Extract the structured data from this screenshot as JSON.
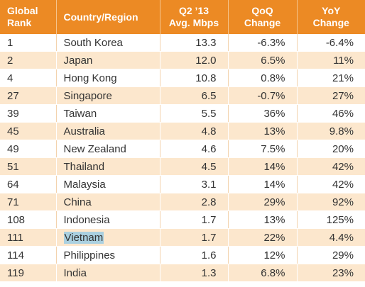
{
  "chart_data": {
    "type": "table",
    "columns": [
      {
        "line1": "Global",
        "line2": "Rank"
      },
      {
        "line1": "Country/Region",
        "line2": ""
      },
      {
        "line1": "Q2 ’13",
        "line2": "Avg. Mbps"
      },
      {
        "line1": "QoQ",
        "line2": "Change"
      },
      {
        "line1": "YoY",
        "line2": "Change"
      }
    ],
    "rows": [
      {
        "rank": "1",
        "country": "South Korea",
        "mbps": "13.3",
        "qoq": "-6.3%",
        "yoy": "-6.4%"
      },
      {
        "rank": "2",
        "country": "Japan",
        "mbps": "12.0",
        "qoq": "6.5%",
        "yoy": "11%"
      },
      {
        "rank": "4",
        "country": "Hong Kong",
        "mbps": "10.8",
        "qoq": "0.8%",
        "yoy": "21%"
      },
      {
        "rank": "27",
        "country": "Singapore",
        "mbps": "6.5",
        "qoq": "-0.7%",
        "yoy": "27%"
      },
      {
        "rank": "39",
        "country": "Taiwan",
        "mbps": "5.5",
        "qoq": "36%",
        "yoy": "46%"
      },
      {
        "rank": "45",
        "country": "Australia",
        "mbps": "4.8",
        "qoq": "13%",
        "yoy": "9.8%"
      },
      {
        "rank": "49",
        "country": "New Zealand",
        "mbps": "4.6",
        "qoq": "7.5%",
        "yoy": "20%"
      },
      {
        "rank": "51",
        "country": "Thailand",
        "mbps": "4.5",
        "qoq": "14%",
        "yoy": "42%"
      },
      {
        "rank": "64",
        "country": "Malaysia",
        "mbps": "3.1",
        "qoq": "14%",
        "yoy": "42%"
      },
      {
        "rank": "71",
        "country": "China",
        "mbps": "2.8",
        "qoq": "29%",
        "yoy": "92%"
      },
      {
        "rank": "108",
        "country": "Indonesia",
        "mbps": "1.7",
        "qoq": "13%",
        "yoy": "125%"
      },
      {
        "rank": "111",
        "country": "Vietnam",
        "mbps": "1.7",
        "qoq": "22%",
        "yoy": "4.4%",
        "highlight": true
      },
      {
        "rank": "114",
        "country": "Philippines",
        "mbps": "1.6",
        "qoq": "12%",
        "yoy": "29%"
      },
      {
        "rank": "119",
        "country": "India",
        "mbps": "1.3",
        "qoq": "6.8%",
        "yoy": "23%"
      }
    ],
    "colors": {
      "header": "#ec8a24",
      "band": "#fce7cd",
      "highlight": "#aad0e0"
    }
  }
}
